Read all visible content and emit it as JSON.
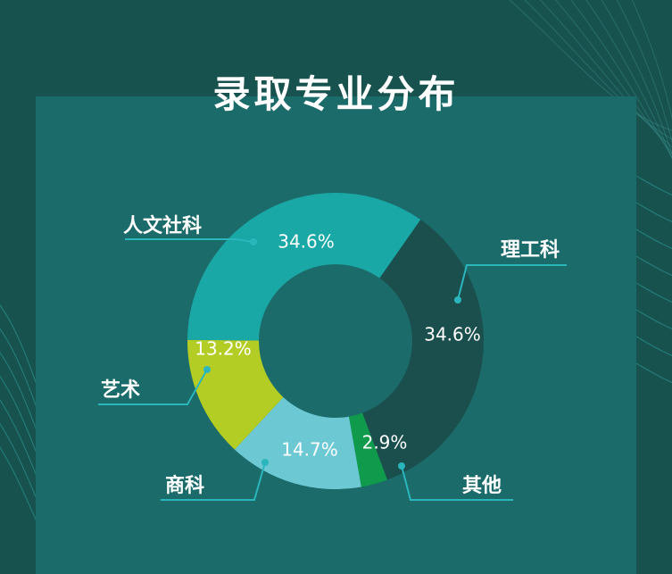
{
  "title": "录取专业分布",
  "chart_data": {
    "type": "pie",
    "title": "录取专业分布",
    "slices": [
      {
        "name": "理工科",
        "value": 34.6,
        "label": "34.6%",
        "color": "#1a4f4d"
      },
      {
        "name": "其他",
        "value": 2.9,
        "label": "2.9%",
        "color": "#109a4c"
      },
      {
        "name": "商科",
        "value": 14.7,
        "label": "14.7%",
        "color": "#6cc9d4"
      },
      {
        "name": "艺术",
        "value": 13.2,
        "label": "13.2%",
        "color": "#b3cd25"
      },
      {
        "name": "人文社科",
        "value": 34.6,
        "label": "34.6%",
        "color": "#1aa8a6"
      }
    ],
    "start_angle_deg": 35,
    "donut": true,
    "legend": "callouts"
  },
  "colors": {
    "background": "#17524f",
    "panel": "#1c6b6b",
    "leader_line": "#2ab6bb"
  }
}
